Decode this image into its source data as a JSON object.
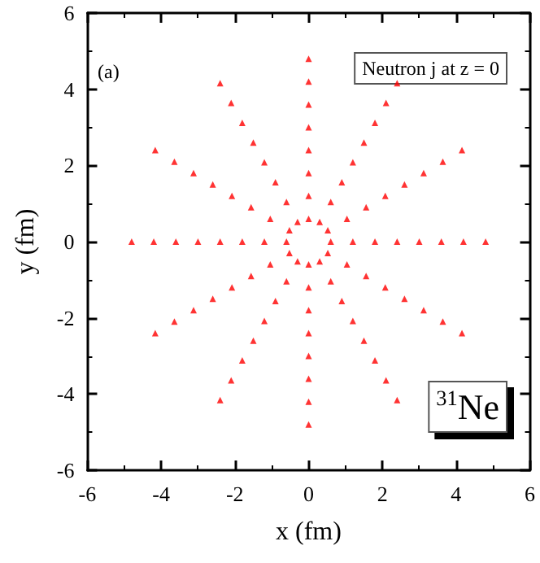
{
  "chart_data": {
    "type": "scatter",
    "xlabel": "x (fm)",
    "ylabel": "y (fm)",
    "xlim": [
      -6,
      6
    ],
    "ylim": [
      -6,
      6
    ],
    "xticks": [
      -6,
      -4,
      -2,
      0,
      2,
      4,
      6
    ],
    "yticks": [
      -6,
      -4,
      -2,
      0,
      2,
      4,
      6
    ],
    "grid": false,
    "marker": "triangle",
    "annotations": [
      "(a)",
      "Neutron j at z = 0",
      "$^{31}$Ne"
    ],
    "series": [
      {
        "color": "#ff0000",
        "x": [
          0.6,
          1.2,
          1.8,
          2.4,
          3.0,
          3.6,
          4.2,
          4.8,
          0.52,
          1.04,
          1.56,
          2.08,
          2.6,
          3.12,
          3.64,
          4.16,
          0.3,
          0.6,
          0.9,
          1.2,
          1.5,
          1.8,
          2.1,
          2.4,
          0,
          0,
          0,
          0,
          0,
          0,
          0,
          0,
          -0.3,
          -0.6,
          -0.9,
          -1.2,
          -1.5,
          -1.8,
          -2.1,
          -2.4,
          -0.52,
          -1.04,
          -1.56,
          -2.08,
          -2.6,
          -3.12,
          -3.64,
          -4.16,
          -0.6,
          -1.2,
          -1.8,
          -2.4,
          -3.0,
          -3.6,
          -4.2,
          -4.8,
          -0.52,
          -1.04,
          -1.56,
          -2.08,
          -2.6,
          -3.12,
          -3.64,
          -4.16,
          -0.3,
          -0.6,
          -0.9,
          -1.2,
          -1.5,
          -1.8,
          -2.1,
          -2.4,
          0,
          0,
          0,
          0,
          0,
          0,
          0,
          0,
          0.3,
          0.6,
          0.9,
          1.2,
          1.5,
          1.8,
          2.1,
          2.4,
          0.52,
          1.04,
          1.56,
          2.08,
          2.6,
          3.12,
          3.64,
          4.16
        ],
        "values": [
          0,
          0,
          0,
          0,
          0,
          0,
          0,
          0,
          0.3,
          0.6,
          0.9,
          1.2,
          1.5,
          1.8,
          2.1,
          2.4,
          0.52,
          1.04,
          1.56,
          2.08,
          2.6,
          3.12,
          3.64,
          4.16,
          0.6,
          1.2,
          1.8,
          2.4,
          3.0,
          3.6,
          4.2,
          4.8,
          0.52,
          1.04,
          1.56,
          2.08,
          2.6,
          3.12,
          3.64,
          4.16,
          0.3,
          0.6,
          0.9,
          1.2,
          1.5,
          1.8,
          2.1,
          2.4,
          0,
          0,
          0,
          0,
          0,
          0,
          0,
          0,
          -0.3,
          -0.6,
          -0.9,
          -1.2,
          -1.5,
          -1.8,
          -2.1,
          -2.4,
          -0.52,
          -1.04,
          -1.56,
          -2.08,
          -2.6,
          -3.12,
          -3.64,
          -4.16,
          -0.6,
          -1.2,
          -1.8,
          -2.4,
          -3.0,
          -3.6,
          -4.2,
          -4.8,
          -0.52,
          -1.04,
          -1.56,
          -2.08,
          -2.6,
          -3.12,
          -3.64,
          -4.16,
          -0.3,
          -0.6,
          -0.9,
          -1.2,
          -1.5,
          -1.8,
          -2.1,
          -2.4
        ]
      }
    ]
  }
}
